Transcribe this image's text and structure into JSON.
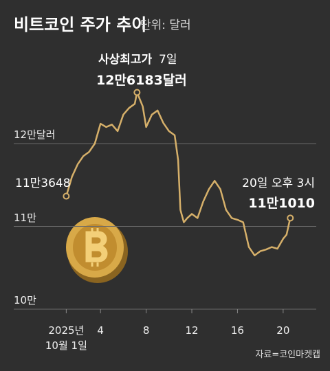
{
  "chart_data": {
    "type": "line",
    "title": "비트코인 주가 추이",
    "subtitle": "단위: 달러",
    "source": "자료=코인마켓캡",
    "annotations": [
      "사상최고가",
      "7일",
      "20일 오후 3시"
    ],
    "color": "#d6b06a",
    "grid": true,
    "x": [
      1,
      1.5,
      2,
      2.5,
      3,
      3.5,
      4,
      4.5,
      5,
      5.5,
      6,
      6.5,
      7,
      7.2,
      7.7,
      8,
      8.5,
      9,
      9.5,
      10,
      10.5,
      10.8,
      11,
      11.3,
      11.6,
      12,
      12.5,
      13,
      13.5,
      14,
      14.5,
      15,
      15.5,
      16,
      16.5,
      17,
      17.5,
      18,
      18.5,
      19,
      19.5,
      20,
      20.3,
      20.625
    ],
    "values": [
      113648,
      116000,
      117500,
      118500,
      119000,
      120000,
      122400,
      122000,
      122300,
      121500,
      123500,
      124300,
      124800,
      126183,
      124500,
      122000,
      123500,
      124000,
      122500,
      121500,
      121000,
      118000,
      112000,
      110500,
      111000,
      111500,
      111000,
      113000,
      114500,
      115500,
      114500,
      112000,
      111000,
      110800,
      110500,
      107500,
      106500,
      107000,
      107200,
      107500,
      107300,
      108500,
      109000,
      111010
    ],
    "value_labels": [
      "11만3648",
      null,
      null,
      null,
      null,
      null,
      null,
      null,
      null,
      null,
      null,
      null,
      null,
      "12만6183달러",
      null,
      null,
      null,
      null,
      null,
      null,
      null,
      null,
      null,
      null,
      null,
      null,
      null,
      null,
      null,
      null,
      null,
      null,
      null,
      null,
      null,
      null,
      null,
      null,
      null,
      null,
      null,
      null,
      null,
      "11만1010"
    ],
    "xlim": [
      -3.6,
      22.9
    ],
    "xticks": [
      {
        "value": 1,
        "label": "2025년\n10월 1일"
      },
      4,
      8,
      12,
      16,
      20
    ],
    "ylim": [
      100000,
      126000
    ],
    "yticks": [
      {
        "value": 100000,
        "label": "10만"
      },
      {
        "value": 110000,
        "label": "11만"
      },
      {
        "value": 120000,
        "label": "12만달러"
      }
    ]
  }
}
